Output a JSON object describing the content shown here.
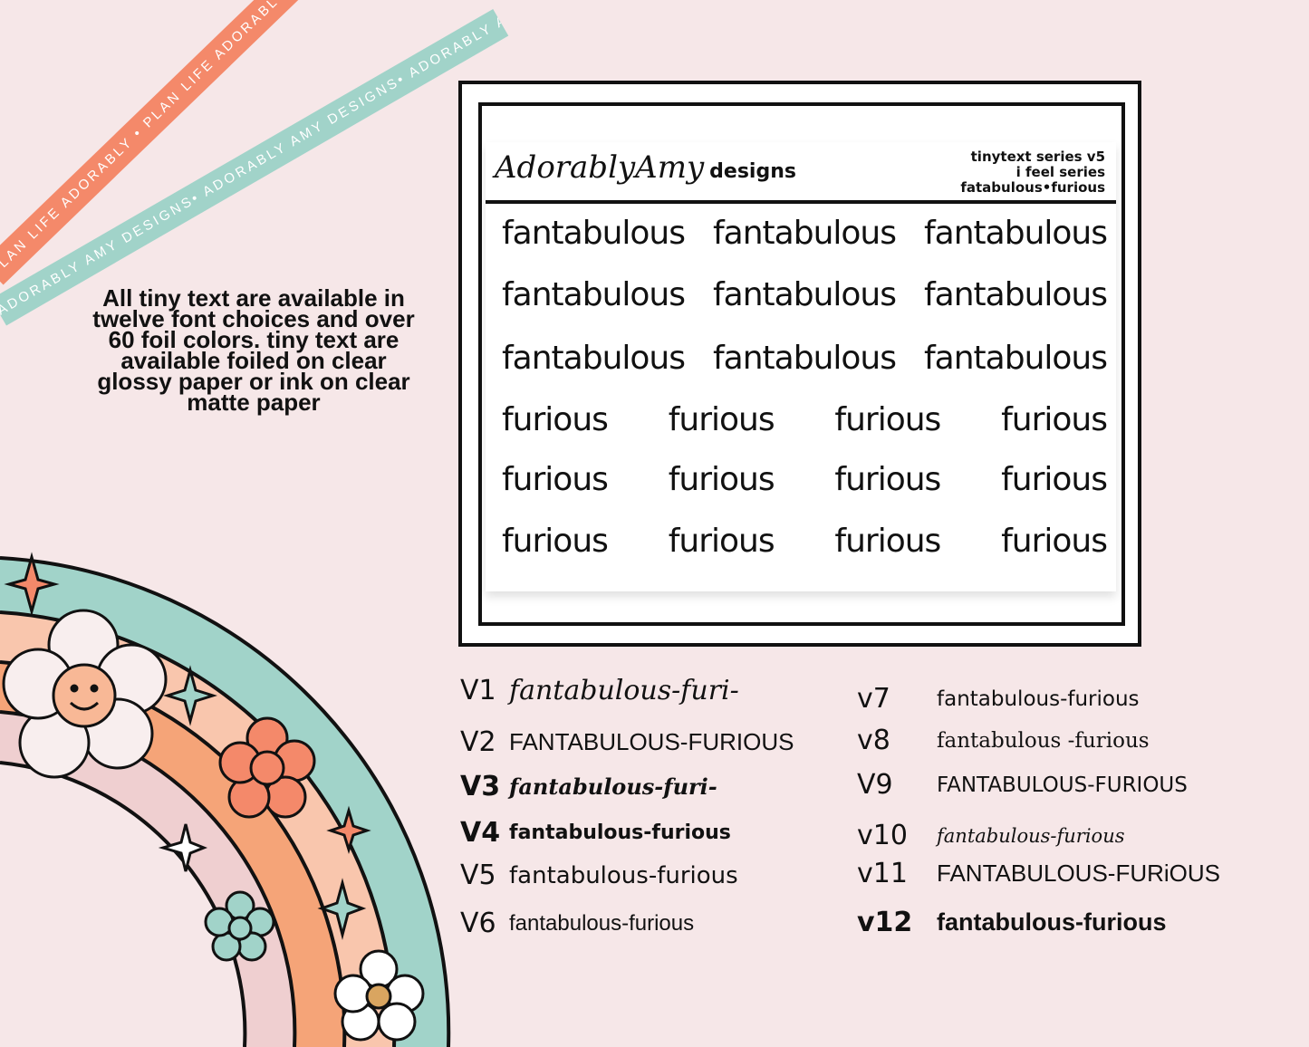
{
  "ribbons": {
    "orange": "PLAN LIFE ADORABLY • PLAN LIFE ADORABLY • PLAN LIFE ADORABLY",
    "teal": "ADORABLY AMY DESIGNS• ADORABLY AMY DESIGNS• ADORABLY AMY DESIGNS•"
  },
  "blurb": "All tiny text are available in twelve font choices and over 60 foil colors.  tiny text are available foiled on clear glossy paper or ink on clear matte paper",
  "sheet": {
    "logo_script": "AdorablyAmy",
    "logo_word": "designs",
    "meta": [
      "tinytext series v5",
      "i feel series",
      "fatabulous•furious"
    ],
    "rows": [
      [
        "fantabulous",
        "fantabulous",
        "fantabulous"
      ],
      [
        "fantabulous",
        "fantabulous",
        "fantabulous"
      ],
      [
        "fantabulous",
        "fantabulous",
        "fantabulous"
      ],
      [
        "furious",
        "furious",
        "furious",
        "furious"
      ],
      [
        "furious",
        "furious",
        "furious",
        "furious"
      ],
      [
        "furious",
        "furious",
        "furious",
        "furious"
      ]
    ]
  },
  "versions": [
    {
      "n": "V1",
      "s": "fantabulous-furi-"
    },
    {
      "n": "V2",
      "s": "FANTABULOUS-FURIOUS"
    },
    {
      "n": "V3",
      "s": "fantabulous-furi-"
    },
    {
      "n": "V4",
      "s": "fantabulous-furious"
    },
    {
      "n": "V5",
      "s": "fantabulous-furious"
    },
    {
      "n": "V6",
      "s": "fantabulous-furious"
    },
    {
      "n": "v7",
      "s": "fantabulous-furious"
    },
    {
      "n": "v8",
      "s": "fantabulous -furious"
    },
    {
      "n": "V9",
      "s": "FANTABULOUS-FURIOUS"
    },
    {
      "n": "v10",
      "s": "fantabulous-furious"
    },
    {
      "n": "v11",
      "s": "FANTABULOUS-FURiOUS"
    },
    {
      "n": "v12",
      "s": "fantabulous-furious"
    }
  ],
  "colors": {
    "background": "#f6e7e8",
    "orange": "#f4896a",
    "teal": "#a1d3c9",
    "peach": "#f9c6ad",
    "deep_orange": "#f5a478",
    "pink": "#efcfd0"
  }
}
